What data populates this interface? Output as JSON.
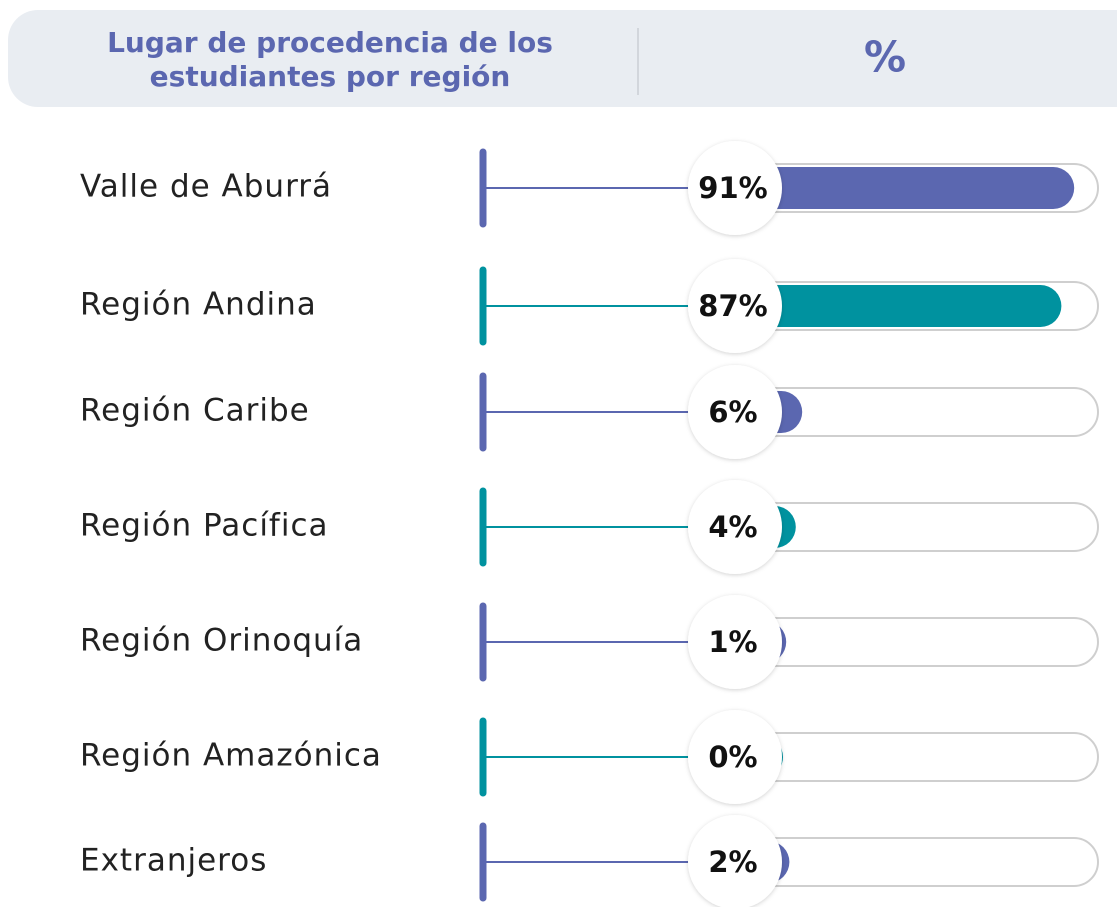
{
  "chart_data": {
    "type": "bar",
    "title": "Lugar de procedencia de los estudiantes por región",
    "value_header": "%",
    "categories": [
      "Valle de Aburrá",
      "Región Andina",
      "Región Caribe",
      "Región Pacífica",
      "Región Orinoquía",
      "Región Amazónica",
      "Extranjeros"
    ],
    "values": [
      91,
      87,
      6,
      4,
      1,
      0,
      2
    ],
    "value_labels": [
      "91%",
      "87%",
      "6%",
      "4%",
      "1%",
      "0%",
      "2%"
    ],
    "colors": [
      "#5b67b0",
      "#00929f",
      "#5b67b0",
      "#00929f",
      "#5b67b0",
      "#00929f",
      "#5b67b0"
    ],
    "xlim": [
      0,
      100
    ]
  }
}
